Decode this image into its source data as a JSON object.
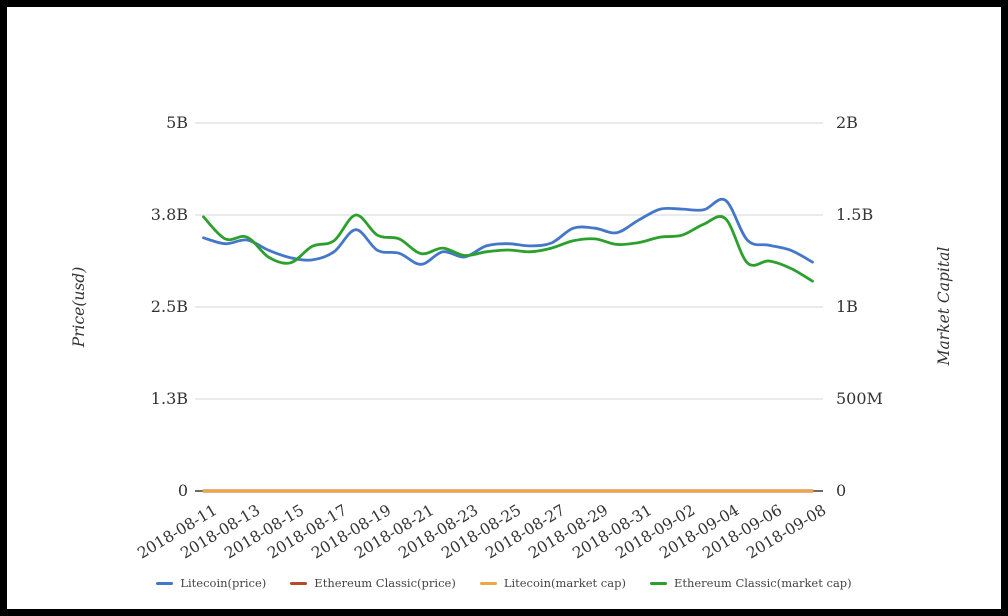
{
  "chart_data": {
    "type": "line",
    "title": "",
    "x_daily_dates": [
      "2018-08-11",
      "2018-08-12",
      "2018-08-13",
      "2018-08-14",
      "2018-08-15",
      "2018-08-16",
      "2018-08-17",
      "2018-08-18",
      "2018-08-19",
      "2018-08-20",
      "2018-08-21",
      "2018-08-22",
      "2018-08-23",
      "2018-08-24",
      "2018-08-25",
      "2018-08-26",
      "2018-08-27",
      "2018-08-28",
      "2018-08-29",
      "2018-08-30",
      "2018-08-31",
      "2018-09-01",
      "2018-09-02",
      "2018-09-03",
      "2018-09-04",
      "2018-09-05",
      "2018-09-06",
      "2018-09-07",
      "2018-09-08"
    ],
    "x_tick_labels": [
      "2018-08-11",
      "2018-08-13",
      "2018-08-15",
      "2018-08-17",
      "2018-08-19",
      "2018-08-21",
      "2018-08-23",
      "2018-08-25",
      "2018-08-27",
      "2018-08-29",
      "2018-08-31",
      "2018-09-02",
      "2018-09-04",
      "2018-09-06",
      "2018-09-08"
    ],
    "left_axis": {
      "title": "Price(usd)",
      "tick_labels": [
        "5B",
        "3.8B",
        "2.5B",
        "1.3B",
        "0"
      ],
      "range_billions": [
        0,
        5
      ]
    },
    "right_axis": {
      "title": "Market Capital",
      "tick_labels": [
        "2B",
        "1.5B",
        "1B",
        "500M",
        "0"
      ],
      "range_billions": [
        0,
        2
      ]
    },
    "grid": true,
    "legend_position": "bottom",
    "series": [
      {
        "name": "Ethereum Classic(price)",
        "color": "#b5492c",
        "axis": "left",
        "unit": "billions_usd",
        "line_width": 3,
        "values_billions": [
          0,
          0,
          0,
          0,
          0,
          0,
          0,
          0,
          0,
          0,
          0,
          0,
          0,
          0,
          0,
          0,
          0,
          0,
          0,
          0,
          0,
          0,
          0,
          0,
          0,
          0,
          0,
          0,
          0
        ]
      },
      {
        "name": "Litecoin(market cap)",
        "color": "#eda93c",
        "axis": "right",
        "unit": "billions_usd",
        "line_width": 2.2,
        "values_billions": [
          0,
          0,
          0,
          0,
          0,
          0,
          0,
          0,
          0,
          0,
          0,
          0,
          0,
          0,
          0,
          0,
          0,
          0,
          0,
          0,
          0,
          0,
          0,
          0,
          0,
          0,
          0,
          0,
          0
        ]
      },
      {
        "name": "Litecoin(price)",
        "color": "#4477c9",
        "axis": "left",
        "unit": "billions_usd",
        "line_width": 2.8,
        "values_billions": [
          3.44,
          3.36,
          3.41,
          3.27,
          3.17,
          3.14,
          3.25,
          3.55,
          3.27,
          3.23,
          3.08,
          3.25,
          3.18,
          3.33,
          3.36,
          3.33,
          3.37,
          3.57,
          3.57,
          3.51,
          3.68,
          3.83,
          3.83,
          3.82,
          3.95,
          3.41,
          3.34,
          3.27,
          3.11
        ]
      },
      {
        "name": "Ethereum Classic(market cap)",
        "color": "#2ca02c",
        "axis": "right",
        "unit": "billions_usd",
        "line_width": 2.8,
        "values_billions": [
          1.49,
          1.37,
          1.38,
          1.27,
          1.24,
          1.33,
          1.36,
          1.5,
          1.39,
          1.37,
          1.29,
          1.32,
          1.28,
          1.3,
          1.31,
          1.3,
          1.32,
          1.36,
          1.37,
          1.34,
          1.35,
          1.38,
          1.39,
          1.45,
          1.48,
          1.24,
          1.25,
          1.21,
          1.14
        ]
      }
    ],
    "legend_order": [
      "Litecoin(price)",
      "Ethereum Classic(price)",
      "Litecoin(market cap)",
      "Ethereum Classic(market cap)"
    ],
    "zero_axis_color": "#3a3a3a",
    "gridline_color": "#d6d6d6"
  }
}
